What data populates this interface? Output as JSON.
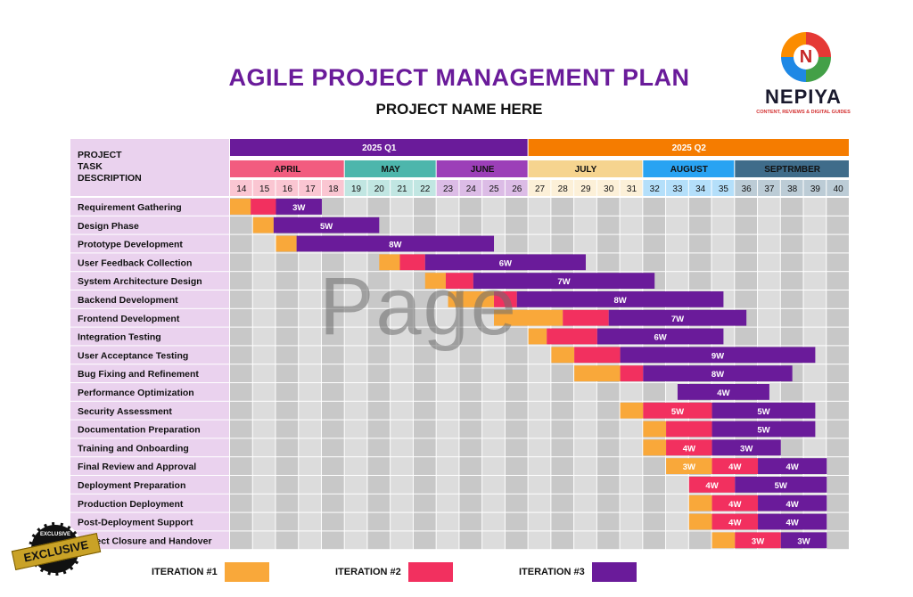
{
  "header": {
    "title": "AGILE PROJECT MANAGEMENT PLAN",
    "subtitle": "PROJECT NAME HERE"
  },
  "logo": {
    "name": "NEPIYA",
    "tagline": "CONTENT, REVIEWS & DIGITAL GUIDES",
    "mark": "N"
  },
  "watermark": "Page",
  "badge": {
    "ribbon": "EXCLUSIVE",
    "seal_text": "EXCLUSIVE"
  },
  "task_header": "PROJECT TASK DESCRIPTION",
  "quarters": [
    {
      "label": "2025 Q1",
      "start_week": 14,
      "end_week": 26,
      "color": "#6a1b9a"
    },
    {
      "label": "2025 Q2",
      "start_week": 27,
      "end_week": 40,
      "color": "#f57c00"
    }
  ],
  "months": [
    {
      "label": "APRIL",
      "start_week": 14,
      "end_week": 18,
      "color": "#f25c7f"
    },
    {
      "label": "MAY",
      "start_week": 19,
      "end_week": 22,
      "color": "#4db6ac"
    },
    {
      "label": "JUNE",
      "start_week": 23,
      "end_week": 26,
      "color": "#9c3fb8"
    },
    {
      "label": "JULY",
      "start_week": 27,
      "end_week": 31,
      "color": "#f6d48f"
    },
    {
      "label": "AUGUST",
      "start_week": 32,
      "end_week": 35,
      "color": "#29a3f2"
    },
    {
      "label": "SEPTRMBER",
      "start_week": 36,
      "end_week": 40,
      "color": "#3f6c8a"
    }
  ],
  "weeks": [
    14,
    15,
    16,
    17,
    18,
    19,
    20,
    21,
    22,
    23,
    24,
    25,
    26,
    27,
    28,
    29,
    30,
    31,
    32,
    33,
    34,
    35,
    36,
    37,
    38,
    39,
    40
  ],
  "colors": {
    "iteration1": "#f9a83a",
    "iteration2": "#f2305f",
    "iteration3": "#6a1b9a",
    "task_bg": "#ead2ee",
    "grid_light": "#dcdcdc",
    "grid_dark": "#c8c8c8"
  },
  "tasks": [
    {
      "name": "Requirement Gathering",
      "segments": [
        [
          14,
          14.9,
          1,
          ""
        ],
        [
          14.9,
          16,
          2,
          ""
        ],
        [
          16,
          18,
          3,
          "3W"
        ]
      ]
    },
    {
      "name": "Design Phase",
      "segments": [
        [
          15,
          15.9,
          1,
          ""
        ],
        [
          15.9,
          20.5,
          3,
          "5W"
        ]
      ]
    },
    {
      "name": "Prototype Development",
      "segments": [
        [
          16,
          16.9,
          1,
          ""
        ],
        [
          16.9,
          25.5,
          3,
          "8W"
        ]
      ]
    },
    {
      "name": "User Feedback Collection",
      "segments": [
        [
          20.5,
          21.4,
          1,
          ""
        ],
        [
          21.4,
          22.5,
          2,
          ""
        ],
        [
          22.5,
          29.5,
          3,
          "6W"
        ]
      ]
    },
    {
      "name": "System Architecture Design",
      "segments": [
        [
          22.5,
          23.4,
          1,
          ""
        ],
        [
          23.4,
          24.6,
          2,
          ""
        ],
        [
          24.6,
          32.5,
          3,
          "7W"
        ]
      ]
    },
    {
      "name": "Backend Development",
      "segments": [
        [
          23.5,
          25.5,
          1,
          ""
        ],
        [
          25.5,
          26.5,
          2,
          ""
        ],
        [
          26.5,
          35.5,
          3,
          "8W"
        ]
      ]
    },
    {
      "name": "Frontend Development",
      "segments": [
        [
          25.5,
          28.5,
          1,
          ""
        ],
        [
          28.5,
          30.5,
          2,
          ""
        ],
        [
          30.5,
          36.5,
          3,
          "7W"
        ]
      ]
    },
    {
      "name": "Integration Testing",
      "segments": [
        [
          27,
          27.8,
          1,
          ""
        ],
        [
          27.8,
          30,
          2,
          ""
        ],
        [
          30,
          35.5,
          3,
          "6W"
        ]
      ]
    },
    {
      "name": "User Acceptance Testing",
      "segments": [
        [
          28,
          29,
          1,
          ""
        ],
        [
          29,
          31,
          2,
          ""
        ],
        [
          31,
          39.5,
          3,
          "9W"
        ]
      ]
    },
    {
      "name": "Bug Fixing and Refinement",
      "segments": [
        [
          29,
          31,
          1,
          ""
        ],
        [
          31,
          32,
          2,
          ""
        ],
        [
          32,
          38.5,
          3,
          "8W"
        ]
      ]
    },
    {
      "name": "Performance Optimization",
      "segments": [
        [
          33.5,
          37.5,
          3,
          "4W"
        ]
      ]
    },
    {
      "name": "Security Assessment",
      "segments": [
        [
          31,
          32,
          1,
          ""
        ],
        [
          32,
          35,
          2,
          "5W"
        ],
        [
          35,
          39.5,
          3,
          "5W"
        ]
      ]
    },
    {
      "name": "Documentation Preparation",
      "segments": [
        [
          32,
          33,
          1,
          ""
        ],
        [
          33,
          35,
          2,
          ""
        ],
        [
          35,
          39.5,
          3,
          "5W"
        ]
      ]
    },
    {
      "name": "Training and Onboarding",
      "segments": [
        [
          32,
          33,
          1,
          ""
        ],
        [
          33,
          35,
          2,
          "4W"
        ],
        [
          35,
          38,
          3,
          "3W"
        ]
      ]
    },
    {
      "name": "Final Review and Approval",
      "segments": [
        [
          33,
          35,
          1,
          "3W"
        ],
        [
          35,
          37,
          2,
          "4W"
        ],
        [
          37,
          40,
          3,
          "4W"
        ]
      ]
    },
    {
      "name": "Deployment Preparation",
      "segments": [
        [
          34,
          36,
          2,
          "4W"
        ],
        [
          36,
          40,
          3,
          "5W"
        ]
      ]
    },
    {
      "name": "Production Deployment",
      "segments": [
        [
          34,
          35,
          1,
          ""
        ],
        [
          35,
          37,
          2,
          "4W"
        ],
        [
          37,
          40,
          3,
          "4W"
        ]
      ]
    },
    {
      "name": "Post-Deployment Support",
      "segments": [
        [
          34,
          35,
          1,
          ""
        ],
        [
          35,
          37,
          2,
          "4W"
        ],
        [
          37,
          40,
          3,
          "4W"
        ]
      ]
    },
    {
      "name": "Project Closure and Handover",
      "segments": [
        [
          35,
          36,
          1,
          ""
        ],
        [
          36,
          38,
          2,
          "3W"
        ],
        [
          38,
          40,
          3,
          "3W"
        ]
      ]
    }
  ],
  "legend": [
    {
      "label": "ITERATION #1",
      "color": "#f9a83a"
    },
    {
      "label": "ITERATION #2",
      "color": "#f2305f"
    },
    {
      "label": "ITERATION #3",
      "color": "#6a1b9a"
    }
  ]
}
